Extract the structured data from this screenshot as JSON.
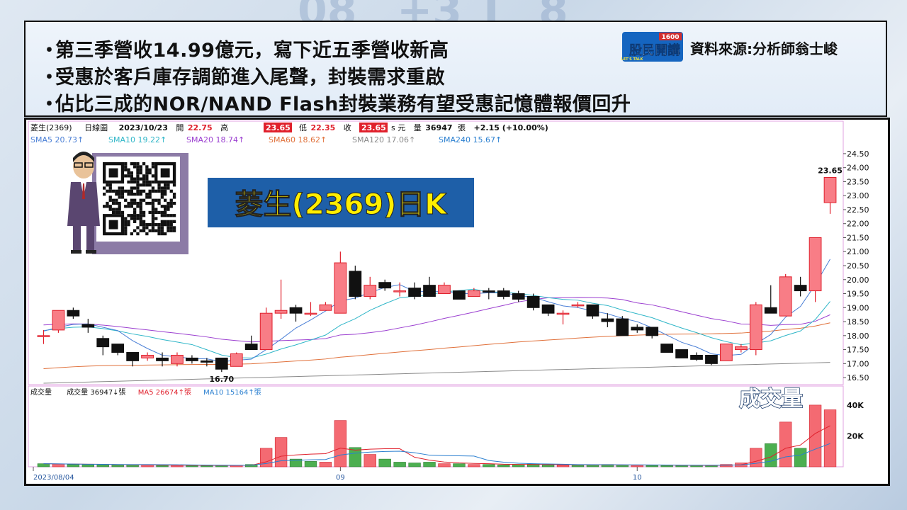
{
  "bullets": [
    "第三季營收14.99億元，寫下近五季營收新高",
    "受惠於客戶庫存調節進入尾聲，封裝需求重啟",
    "佔比三成的NOR/NAND Flash封裝業務有望受惠記憶體報價回升"
  ],
  "bullet_marker": "・",
  "logo": {
    "text_main": "股民開講",
    "text_num": "1600",
    "text_sub": "LET'S TALK"
  },
  "source_label": "資料來源:分析師翁士峻",
  "header": {
    "stock": "菱生(2369)",
    "period": "日線圖",
    "date": "2023/10/23",
    "open_label": "開",
    "open": "22.75",
    "high_label": "高",
    "high": "23.65",
    "low_label": "低",
    "low": "22.35",
    "close_label": "收",
    "close": "23.65",
    "unit": "s 元",
    "vol_label": "量",
    "vol": "36947",
    "vol_unit": "張",
    "change": "+2.15 (+10.00%)"
  },
  "sma": [
    {
      "label": "SMA5 20.73↑",
      "color": "#4a7fd6"
    },
    {
      "label": "SMA10 19.22↑",
      "color": "#2fb6c8"
    },
    {
      "label": "SMA20 18.74↑",
      "color": "#9b3fd0"
    },
    {
      "label": "SMA60 18.62↑",
      "color": "#e0703a"
    },
    {
      "label": "SMA120 17.06↑",
      "color": "#8a8a8a"
    },
    {
      "label": "SMA240 15.67↑",
      "color": "#2a7fd0"
    }
  ],
  "title_box": {
    "text": "菱生(2369)日K",
    "bg": "#1e5fa8",
    "fg": "#ffee00"
  },
  "volume_caption": "成交量",
  "volume_header": {
    "title": "成交量",
    "vol_label": "成交量 36947↓張",
    "ma5_label": "MA5 26674↑張",
    "ma10_label": "MA10 15164↑張"
  },
  "chart_data": {
    "type": "candlestick",
    "y_ticks": [
      "24.50",
      "24.00",
      "23.50",
      "23.00",
      "22.50",
      "22.00",
      "21.50",
      "21.00",
      "20.50",
      "20.00",
      "19.50",
      "19.00",
      "18.50",
      "18.00",
      "17.50",
      "17.00",
      "16.50"
    ],
    "ylim": [
      16.3,
      24.7
    ],
    "x_labels": [
      {
        "text": "2023/08/04",
        "index": 0
      },
      {
        "text": "09",
        "index": 20
      },
      {
        "text": "10",
        "index": 40
      }
    ],
    "annotations": [
      {
        "text": "16.70",
        "index": 12
      },
      {
        "text": "23.65",
        "index": 53
      }
    ],
    "candles": [
      [
        18.0,
        18.0,
        18.2,
        17.7
      ],
      [
        18.2,
        18.9,
        18.9,
        18.1
      ],
      [
        18.9,
        18.7,
        19.0,
        18.6
      ],
      [
        18.4,
        18.3,
        18.6,
        18.1
      ],
      [
        17.9,
        17.6,
        18.0,
        17.3
      ],
      [
        17.7,
        17.4,
        17.7,
        17.3
      ],
      [
        17.4,
        17.1,
        17.4,
        16.9
      ],
      [
        17.2,
        17.3,
        17.4,
        17.1
      ],
      [
        17.2,
        17.1,
        17.4,
        16.9
      ],
      [
        17.0,
        17.3,
        17.4,
        16.9
      ],
      [
        17.2,
        17.1,
        17.3,
        17.0
      ],
      [
        17.1,
        17.05,
        17.2,
        16.9
      ],
      [
        17.2,
        16.8,
        17.2,
        16.7
      ],
      [
        16.9,
        17.35,
        17.4,
        16.9
      ],
      [
        17.7,
        17.5,
        18.0,
        17.5
      ],
      [
        17.5,
        18.8,
        19.0,
        17.5
      ],
      [
        18.8,
        18.9,
        20.0,
        18.6
      ],
      [
        19.0,
        18.8,
        19.1,
        18.5
      ],
      [
        18.8,
        18.8,
        19.2,
        18.7
      ],
      [
        18.9,
        19.1,
        19.2,
        18.9
      ],
      [
        18.8,
        20.6,
        21.0,
        18.8
      ],
      [
        20.3,
        19.4,
        20.5,
        19.3
      ],
      [
        19.4,
        19.8,
        20.1,
        19.3
      ],
      [
        19.9,
        19.7,
        20.0,
        19.6
      ],
      [
        19.6,
        19.6,
        19.9,
        19.4
      ],
      [
        19.7,
        19.4,
        19.9,
        19.3
      ],
      [
        19.8,
        19.4,
        20.1,
        19.4
      ],
      [
        19.5,
        19.8,
        19.9,
        19.5
      ],
      [
        19.6,
        19.3,
        19.6,
        19.3
      ],
      [
        19.4,
        19.6,
        19.7,
        19.4
      ],
      [
        19.6,
        19.55,
        19.7,
        19.3
      ],
      [
        19.6,
        19.4,
        19.7,
        19.3
      ],
      [
        19.5,
        19.3,
        19.6,
        19.2
      ],
      [
        19.4,
        19.0,
        19.5,
        18.9
      ],
      [
        19.1,
        18.8,
        19.1,
        18.7
      ],
      [
        18.8,
        18.8,
        18.9,
        18.4
      ],
      [
        19.1,
        19.1,
        19.2,
        19.0
      ],
      [
        19.1,
        18.7,
        19.1,
        18.6
      ],
      [
        18.6,
        18.5,
        18.8,
        18.3
      ],
      [
        18.6,
        18.0,
        18.7,
        18.0
      ],
      [
        18.3,
        18.2,
        18.4,
        18.1
      ],
      [
        18.3,
        18.0,
        18.3,
        17.9
      ],
      [
        17.7,
        17.4,
        17.7,
        17.4
      ],
      [
        17.5,
        17.2,
        17.5,
        17.2
      ],
      [
        17.3,
        17.15,
        17.4,
        17.1
      ],
      [
        17.3,
        17.0,
        17.3,
        16.95
      ],
      [
        17.1,
        17.7,
        17.7,
        17.1
      ],
      [
        17.5,
        17.6,
        17.7,
        17.4
      ],
      [
        17.5,
        19.1,
        19.2,
        17.3
      ],
      [
        19.0,
        18.8,
        19.8,
        18.8
      ],
      [
        18.7,
        20.1,
        20.2,
        18.7
      ],
      [
        19.8,
        19.6,
        20.1,
        19.4
      ],
      [
        19.6,
        21.5,
        21.5,
        19.2
      ],
      [
        22.75,
        23.65,
        23.65,
        22.35
      ]
    ],
    "volumes": [
      {
        "v": 2000,
        "up": false
      },
      {
        "v": 1800,
        "up": true
      },
      {
        "v": 1500,
        "up": false
      },
      {
        "v": 1400,
        "up": false
      },
      {
        "v": 1200,
        "up": false
      },
      {
        "v": 1100,
        "up": false
      },
      {
        "v": 1200,
        "up": false
      },
      {
        "v": 1100,
        "up": true
      },
      {
        "v": 900,
        "up": false
      },
      {
        "v": 1000,
        "up": true
      },
      {
        "v": 800,
        "up": false
      },
      {
        "v": 700,
        "up": false
      },
      {
        "v": 900,
        "up": false
      },
      {
        "v": 900,
        "up": true
      },
      {
        "v": 1500,
        "up": false
      },
      {
        "v": 12000,
        "up": true
      },
      {
        "v": 19000,
        "up": true
      },
      {
        "v": 5000,
        "up": false
      },
      {
        "v": 3500,
        "up": false
      },
      {
        "v": 3000,
        "up": true
      },
      {
        "v": 30000,
        "up": true
      },
      {
        "v": 12500,
        "up": false
      },
      {
        "v": 8000,
        "up": true
      },
      {
        "v": 5000,
        "up": false
      },
      {
        "v": 3000,
        "up": false
      },
      {
        "v": 2500,
        "up": false
      },
      {
        "v": 3000,
        "up": false
      },
      {
        "v": 2000,
        "up": true
      },
      {
        "v": 2000,
        "up": false
      },
      {
        "v": 1500,
        "up": true
      },
      {
        "v": 1500,
        "up": false
      },
      {
        "v": 1200,
        "up": false
      },
      {
        "v": 1500,
        "up": false
      },
      {
        "v": 1800,
        "up": false
      },
      {
        "v": 1200,
        "up": false
      },
      {
        "v": 1000,
        "up": true
      },
      {
        "v": 900,
        "up": false
      },
      {
        "v": 1200,
        "up": false
      },
      {
        "v": 1500,
        "up": false
      },
      {
        "v": 1200,
        "up": false
      },
      {
        "v": 1000,
        "up": true
      },
      {
        "v": 900,
        "up": false
      },
      {
        "v": 900,
        "up": false
      },
      {
        "v": 800,
        "up": false
      },
      {
        "v": 900,
        "up": false
      },
      {
        "v": 900,
        "up": false
      },
      {
        "v": 1500,
        "up": true
      },
      {
        "v": 2500,
        "up": true
      },
      {
        "v": 12000,
        "up": true
      },
      {
        "v": 15000,
        "up": false
      },
      {
        "v": 29000,
        "up": true
      },
      {
        "v": 12000,
        "up": false
      },
      {
        "v": 40000,
        "up": true
      },
      {
        "v": 36947,
        "up": true
      }
    ],
    "vol_ticks": [
      "40K",
      "20K"
    ],
    "vol_ylim": [
      0,
      45000
    ]
  }
}
